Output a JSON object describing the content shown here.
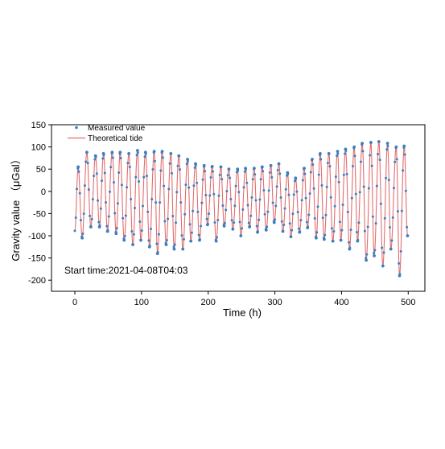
{
  "chart_data": {
    "type": "line",
    "xlabel": "Time (h)",
    "ylabel": "Gravity value （μGal）",
    "xlim": [
      -35,
      525
    ],
    "ylim": [
      -225,
      150
    ],
    "xticks": [
      0,
      100,
      200,
      300,
      400,
      500
    ],
    "yticks": [
      -200,
      -150,
      -100,
      -50,
      0,
      50,
      100,
      150
    ],
    "annotation": "Start time:2021-04-08T04:03",
    "legend_position": "top-left",
    "grid": false,
    "series": [
      {
        "name": "Measured value",
        "kind": "scatter",
        "color": "#3a7fc1",
        "peaks": [
          [
            5,
            55
          ],
          [
            18,
            88
          ],
          [
            31,
            80
          ],
          [
            43,
            85
          ],
          [
            56,
            88
          ],
          [
            68,
            88
          ],
          [
            81,
            85
          ],
          [
            94,
            92
          ],
          [
            106,
            88
          ],
          [
            119,
            90
          ],
          [
            131,
            90
          ],
          [
            144,
            85
          ],
          [
            156,
            80
          ],
          [
            169,
            72
          ],
          [
            181,
            62
          ],
          [
            194,
            58
          ],
          [
            206,
            56
          ],
          [
            219,
            55
          ],
          [
            231,
            50
          ],
          [
            244,
            50
          ],
          [
            256,
            52
          ],
          [
            269,
            52
          ],
          [
            281,
            55
          ],
          [
            294,
            58
          ],
          [
            306,
            62
          ],
          [
            319,
            42
          ],
          [
            331,
            30
          ],
          [
            344,
            52
          ],
          [
            356,
            72
          ],
          [
            368,
            85
          ],
          [
            381,
            85
          ],
          [
            394,
            90
          ],
          [
            406,
            95
          ],
          [
            419,
            100
          ],
          [
            431,
            108
          ],
          [
            444,
            110
          ],
          [
            456,
            112
          ],
          [
            469,
            108
          ],
          [
            482,
            100
          ],
          [
            494,
            102
          ]
        ],
        "troughs": [
          [
            11,
            -105
          ],
          [
            24,
            -80
          ],
          [
            37,
            -80
          ],
          [
            49,
            -90
          ],
          [
            62,
            -95
          ],
          [
            74,
            -110
          ],
          [
            87,
            -120
          ],
          [
            99,
            -110
          ],
          [
            112,
            -125
          ],
          [
            124,
            -140
          ],
          [
            137,
            -120
          ],
          [
            149,
            -130
          ],
          [
            162,
            -130
          ],
          [
            174,
            -112
          ],
          [
            187,
            -110
          ],
          [
            199,
            -75
          ],
          [
            212,
            -112
          ],
          [
            224,
            -78
          ],
          [
            237,
            -85
          ],
          [
            249,
            -100
          ],
          [
            262,
            -80
          ],
          [
            274,
            -92
          ],
          [
            287,
            -87
          ],
          [
            299,
            -70
          ],
          [
            312,
            -90
          ],
          [
            324,
            -102
          ],
          [
            337,
            -92
          ],
          [
            349,
            -82
          ],
          [
            362,
            -105
          ],
          [
            374,
            -108
          ],
          [
            387,
            -112
          ],
          [
            399,
            -110
          ],
          [
            412,
            -130
          ],
          [
            424,
            -112
          ],
          [
            437,
            -155
          ],
          [
            449,
            -145
          ],
          [
            462,
            -168
          ],
          [
            474,
            -130
          ],
          [
            487,
            -190
          ],
          [
            499,
            -100
          ]
        ]
      },
      {
        "name": "Theoretical tide",
        "kind": "line",
        "color": "#e26d6d"
      }
    ]
  }
}
